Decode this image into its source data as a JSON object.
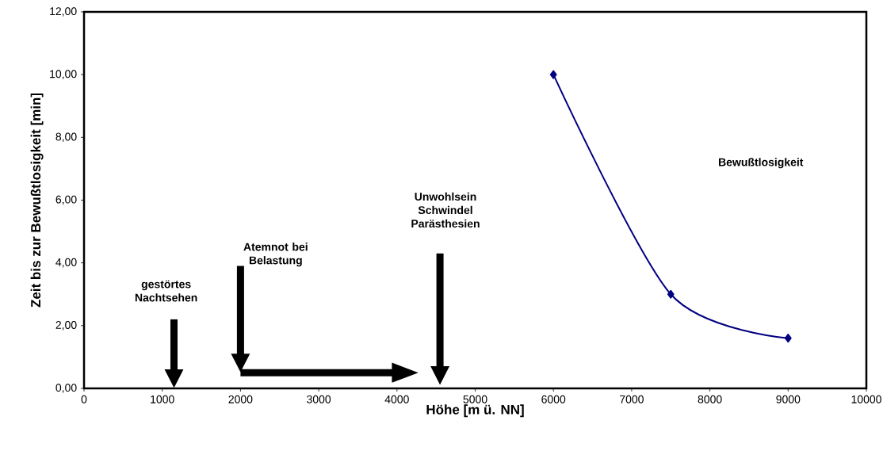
{
  "chart_data": {
    "type": "line",
    "xlabel": "Höhe [m ü. NN]",
    "ylabel": "Zeit bis zur Bewußtlosigkeit [min]",
    "x": [
      6000,
      7500,
      9000
    ],
    "series": [
      {
        "color": "#000080",
        "values": [
          10,
          3,
          1.6
        ]
      }
    ],
    "marker": "diamond",
    "line_style": "solid",
    "xlim": [
      0,
      10000
    ],
    "xticks": [
      0,
      1000,
      2000,
      3000,
      4000,
      5000,
      6000,
      7000,
      8000,
      9000,
      10000
    ],
    "ylim": [
      0,
      12
    ],
    "yticks": [
      {
        "value": 0,
        "label": "0,00"
      },
      {
        "value": 2,
        "label": "2,00"
      },
      {
        "value": 4,
        "label": "4,00"
      },
      {
        "value": 6,
        "label": "6,00"
      },
      {
        "value": 8,
        "label": "8,00"
      },
      {
        "value": 10,
        "label": "10,00"
      },
      {
        "value": 12,
        "label": "12,00"
      }
    ],
    "annotations": [
      "gestörtes Nachtsehen",
      "Atemnot bei Belastung",
      "Unwohlsein Schwindel Parästhesien",
      "Bewußtlosigkeit"
    ]
  }
}
